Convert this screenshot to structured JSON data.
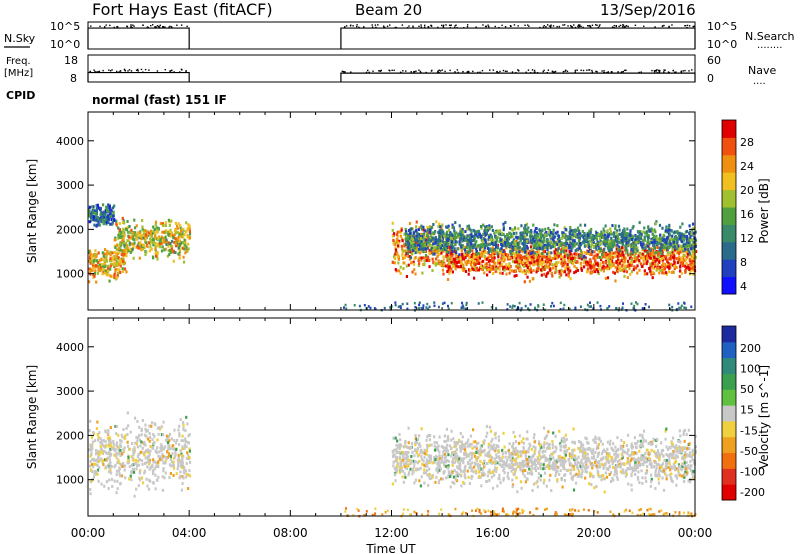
{
  "header": {
    "title": "Fort Hays East (fitACF)",
    "beam": "Beam 20",
    "date": "13/Sep/2016"
  },
  "noise_panel": {
    "left_label": "N.Sky",
    "right_label": "N.Search",
    "left_ticks": [
      "10^5",
      "10^0"
    ],
    "right_ticks": [
      "10^5",
      "10^0"
    ],
    "right_legend": "........"
  },
  "freq_panel": {
    "left_label_line1": "Freq.",
    "left_label_line2": "[MHz]",
    "right_label": "Nave",
    "left_ticks": [
      "18",
      "8"
    ],
    "right_ticks": [
      "60",
      "0"
    ],
    "right_legend": "...."
  },
  "cpid": {
    "label": "CPID",
    "value": "normal (fast) 151 IF"
  },
  "colors": {
    "ground_scatter": "#c8c8c8",
    "power_scale": [
      "#1010ff",
      "#2040c0",
      "#2a6a8a",
      "#3a8a6a",
      "#50a040",
      "#a0c030",
      "#f0c020",
      "#f09010",
      "#f05010",
      "#e00000"
    ],
    "velocity_scale": [
      "#1e2aa0",
      "#2060c0",
      "#2f8a7a",
      "#3aa050",
      "#60c040",
      "#c8c8c8",
      "#f0d040",
      "#f0a020",
      "#f07010",
      "#e03020",
      "#e00000"
    ]
  },
  "chart_data": [
    {
      "type": "line",
      "name": "noise-panel",
      "x": [
        0,
        4,
        4,
        10,
        10,
        24
      ],
      "series": [
        {
          "name": "N.Sky",
          "values": [
            7500,
            7500,
            null,
            null,
            7500,
            7500
          ]
        },
        {
          "name": "N.Search",
          "values": [
            null,
            null,
            null,
            null,
            null,
            null
          ]
        }
      ],
      "xlim": [
        0,
        24
      ],
      "ylim": [
        1,
        100000
      ],
      "yscale": "log"
    },
    {
      "type": "line",
      "name": "frequency-panel",
      "x": [
        0,
        4,
        4,
        10,
        10,
        24
      ],
      "series": [
        {
          "name": "Freq.",
          "values": [
            11.5,
            11.5,
            null,
            null,
            11.3,
            11.3
          ]
        },
        {
          "name": "Nave",
          "values": [
            null,
            null,
            null,
            null,
            null,
            null
          ]
        }
      ],
      "xlim": [
        0,
        24
      ],
      "ylim": [
        8,
        18
      ]
    },
    {
      "type": "heatmap",
      "name": "power-panel",
      "ylabel": "Slant Range [km]",
      "yticks": [
        1000,
        2000,
        3000,
        4000
      ],
      "ylim": [
        180,
        4650
      ],
      "xlim": [
        0,
        24
      ],
      "colorbar": {
        "label": "Power [dB]",
        "ticks": [
          "28",
          "24",
          "20",
          "16",
          "12",
          "8",
          "4"
        ],
        "range": [
          0,
          30
        ]
      },
      "scatter_bands": [
        {
          "t_start": 0.0,
          "t_end": 1.5,
          "r_center": 1280,
          "r_width": 320,
          "level_dB": 20
        },
        {
          "t_start": 1.0,
          "t_end": 4.0,
          "r_center": 1800,
          "r_width": 400,
          "level_dB": 18
        },
        {
          "t_start": 0.0,
          "t_end": 1.0,
          "r_center": 2350,
          "r_width": 220,
          "level_dB": 8
        },
        {
          "t_start": 12.0,
          "t_end": 14.0,
          "r_center": 1600,
          "r_width": 500,
          "level_dB": 22
        },
        {
          "t_start": 14.0,
          "t_end": 24.0,
          "r_center": 1350,
          "r_width": 350,
          "level_dB": 24
        },
        {
          "t_start": 12.5,
          "t_end": 24.0,
          "r_center": 1800,
          "r_width": 300,
          "level_dB": 10
        }
      ]
    },
    {
      "type": "heatmap",
      "name": "velocity-panel",
      "ylabel": "Slant Range [km]",
      "xlabel": "Time UT",
      "xticks": [
        "00:00",
        "04:00",
        "08:00",
        "12:00",
        "16:00",
        "20:00",
        "00:00"
      ],
      "yticks": [
        1000,
        2000,
        3000,
        4000
      ],
      "ylim": [
        180,
        4650
      ],
      "xlim": [
        0,
        24
      ],
      "colorbar": {
        "label": "Velocity [m s^-1]",
        "ticks": [
          "200",
          "100",
          "50",
          "15",
          "-15",
          "-50",
          "-100",
          "-200"
        ],
        "range": [
          -250,
          250
        ]
      },
      "scatter_bands": [
        {
          "t_start": 0.0,
          "t_end": 4.0,
          "r_center": 1600,
          "r_width": 700,
          "level_ms": 0
        },
        {
          "t_start": 12.0,
          "t_end": 24.0,
          "r_center": 1500,
          "r_width": 550,
          "level_ms": 0
        }
      ]
    }
  ]
}
